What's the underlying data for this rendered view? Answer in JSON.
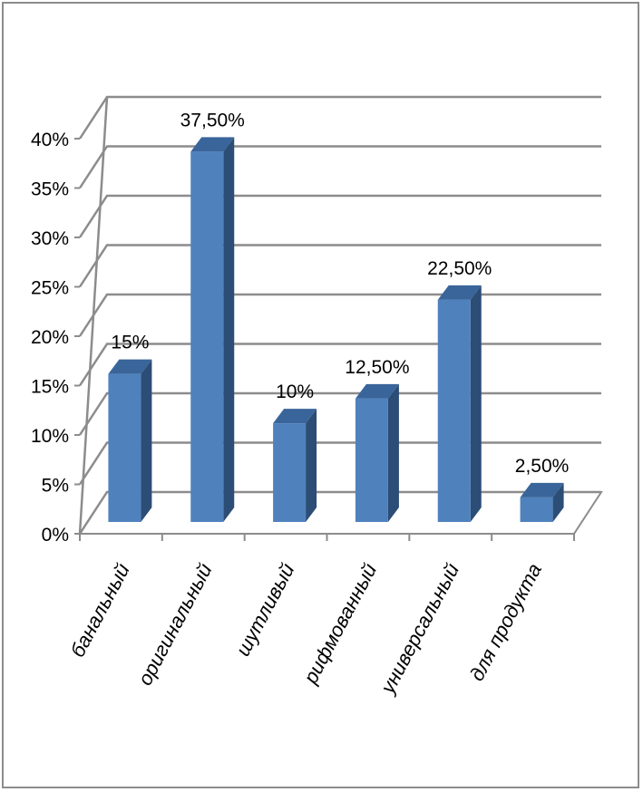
{
  "chart_data": {
    "type": "bar",
    "categories": [
      "банальный",
      "оригинальный",
      "шутливый",
      "рифмованный",
      "универсальный",
      "для продукта"
    ],
    "values": [
      15,
      37.5,
      10,
      12.5,
      22.5,
      2.5
    ],
    "data_labels": [
      "15%",
      "37,50%",
      "10%",
      "12,50%",
      "22,50%",
      "2,50%"
    ],
    "y_ticks": [
      "0%",
      "5%",
      "10%",
      "15%",
      "20%",
      "25%",
      "30%",
      "35%",
      "40%"
    ],
    "ylim": [
      0,
      40
    ],
    "grid": true,
    "three_d": true,
    "legend": "none",
    "title": "",
    "xlabel": "",
    "ylabel": ""
  },
  "colors": {
    "bar_front": "#4f81bd",
    "bar_side": "#2c4d75",
    "bar_top": "#3a659a",
    "grid": "#8c8c8c",
    "frame": "#8c8c8c"
  }
}
